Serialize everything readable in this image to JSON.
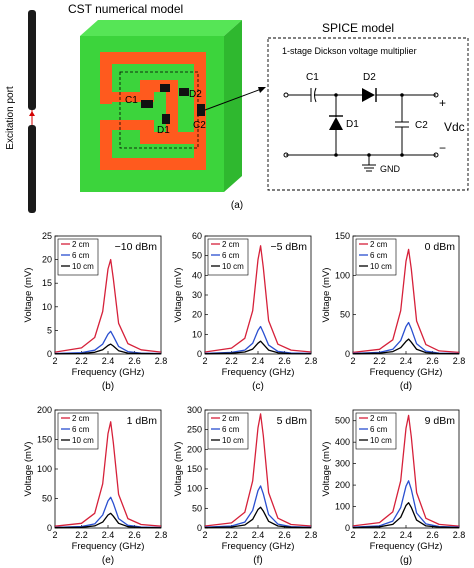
{
  "figure": {
    "cst_title": "CST numerical model",
    "excitation_label": "Excitation port",
    "spice_title": "SPICE model",
    "circuit_caption": "1-stage Dickson voltage multiplier",
    "c1_label": "C1",
    "d2_label": "D2",
    "d1_label": "D1",
    "c2_label": "C2",
    "gnd_label": "GND",
    "vdc_label": "Vdc",
    "plus_label": "+",
    "minus_label": "−",
    "model_c1": "C1",
    "model_d2": "D2",
    "model_d1": "D1",
    "model_c2": "C2",
    "panel_a": "(a)",
    "colors": {
      "antenna_green": "#3cd43c",
      "antenna_orange": "#ff5a1e",
      "series_2cm": "#d6213a",
      "series_6cm": "#2a4fd0",
      "series_10cm": "#000000"
    }
  },
  "chart_data": [
    {
      "type": "line",
      "panel": "(b)",
      "annotation": "−10 dBm",
      "xlabel": "Frequency (GHz)",
      "ylabel": "Voltage (mV)",
      "xlim": [
        2,
        2.8
      ],
      "ylim": [
        0,
        25
      ],
      "xticks": [
        "2",
        "2.2",
        "2.4",
        "2.6",
        "2.8"
      ],
      "yticks": [
        "0",
        "5",
        "10",
        "15",
        "20",
        "25"
      ],
      "x": [
        2.0,
        2.2,
        2.3,
        2.36,
        2.4,
        2.42,
        2.44,
        2.48,
        2.55,
        2.65,
        2.8
      ],
      "series": [
        {
          "name": "2 cm",
          "values": [
            0.4,
            1.3,
            3.5,
            9.0,
            18.0,
            20.0,
            16.0,
            6.5,
            2.2,
            0.9,
            0.4
          ]
        },
        {
          "name": "6 cm",
          "values": [
            0.1,
            0.3,
            0.8,
            2.1,
            4.2,
            4.8,
            3.8,
            1.6,
            0.5,
            0.2,
            0.1
          ]
        },
        {
          "name": "10 cm",
          "values": [
            0.05,
            0.1,
            0.35,
            0.9,
            1.8,
            2.1,
            1.7,
            0.7,
            0.2,
            0.1,
            0.05
          ]
        }
      ]
    },
    {
      "type": "line",
      "panel": "(c)",
      "annotation": "−5 dBm",
      "xlabel": "Frequency (GHz)",
      "ylabel": "Voltage (mV)",
      "xlim": [
        2,
        2.8
      ],
      "ylim": [
        0,
        60
      ],
      "xticks": [
        "2",
        "2.2",
        "2.4",
        "2.6",
        "2.8"
      ],
      "yticks": [
        "0",
        "10",
        "20",
        "30",
        "40",
        "50",
        "60"
      ],
      "x": [
        2.0,
        2.2,
        2.3,
        2.36,
        2.4,
        2.42,
        2.44,
        2.48,
        2.55,
        2.65,
        2.8
      ],
      "series": [
        {
          "name": "2 cm",
          "values": [
            1.0,
            3.0,
            8.0,
            22.0,
            48.0,
            55.0,
            44.0,
            17.0,
            5.0,
            2.0,
            1.0
          ]
        },
        {
          "name": "6 cm",
          "values": [
            0.3,
            0.8,
            2.0,
            5.5,
            12.0,
            14.0,
            11.0,
            4.5,
            1.3,
            0.5,
            0.3
          ]
        },
        {
          "name": "10 cm",
          "values": [
            0.1,
            0.4,
            1.0,
            2.5,
            5.5,
            6.5,
            5.0,
            2.0,
            0.6,
            0.2,
            0.1
          ]
        }
      ]
    },
    {
      "type": "line",
      "panel": "(d)",
      "annotation": "0 dBm",
      "xlabel": "Frequency (GHz)",
      "ylabel": "Voltage (mV)",
      "xlim": [
        2,
        2.8
      ],
      "ylim": [
        0,
        150
      ],
      "xticks": [
        "2",
        "2.2",
        "2.4",
        "2.6",
        "2.8"
      ],
      "yticks": [
        "0",
        "50",
        "100",
        "150"
      ],
      "x": [
        2.0,
        2.2,
        2.3,
        2.36,
        2.4,
        2.42,
        2.44,
        2.48,
        2.55,
        2.65,
        2.8
      ],
      "series": [
        {
          "name": "2 cm",
          "values": [
            2.0,
            6.0,
            18.0,
            55.0,
            118.0,
            133.0,
            108.0,
            42.0,
            12.0,
            4.0,
            2.0
          ]
        },
        {
          "name": "6 cm",
          "values": [
            0.8,
            2.0,
            6.0,
            17.0,
            35.0,
            40.0,
            32.0,
            13.0,
            3.5,
            1.2,
            0.6
          ]
        },
        {
          "name": "10 cm",
          "values": [
            0.3,
            1.0,
            3.0,
            8.0,
            16.0,
            19.0,
            15.0,
            6.0,
            1.8,
            0.6,
            0.3
          ]
        }
      ]
    },
    {
      "type": "line",
      "panel": "(e)",
      "annotation": "1 dBm",
      "xlabel": "Frequency (GHz)",
      "ylabel": "Voltage (mV)",
      "xlim": [
        2,
        2.8
      ],
      "ylim": [
        0,
        200
      ],
      "xticks": [
        "2",
        "2.2",
        "2.4",
        "2.6",
        "2.8"
      ],
      "yticks": [
        "0",
        "50",
        "100",
        "150",
        "200"
      ],
      "x": [
        2.0,
        2.2,
        2.3,
        2.36,
        2.4,
        2.42,
        2.44,
        2.48,
        2.55,
        2.65,
        2.8
      ],
      "series": [
        {
          "name": "2 cm",
          "values": [
            3.0,
            8.0,
            25.0,
            75.0,
            160.0,
            180.0,
            145.0,
            57.0,
            16.0,
            6.0,
            3.0
          ]
        },
        {
          "name": "6 cm",
          "values": [
            1.0,
            2.5,
            7.0,
            22.0,
            46.0,
            52.0,
            42.0,
            16.0,
            4.5,
            1.7,
            0.8
          ]
        },
        {
          "name": "10 cm",
          "values": [
            0.5,
            1.2,
            3.5,
            10.0,
            22.0,
            25.0,
            20.0,
            8.0,
            2.2,
            0.8,
            0.4
          ]
        }
      ]
    },
    {
      "type": "line",
      "panel": "(f)",
      "annotation": "5 dBm",
      "xlabel": "Frequency (GHz)",
      "ylabel": "Voltage (mV)",
      "xlim": [
        2,
        2.8
      ],
      "ylim": [
        0,
        300
      ],
      "xticks": [
        "2",
        "2.2",
        "2.4",
        "2.6",
        "2.8"
      ],
      "yticks": [
        "0",
        "50",
        "100",
        "150",
        "200",
        "250",
        "300"
      ],
      "x": [
        2.0,
        2.2,
        2.3,
        2.36,
        2.4,
        2.42,
        2.44,
        2.48,
        2.55,
        2.65,
        2.8
      ],
      "series": [
        {
          "name": "2 cm",
          "values": [
            5.0,
            13.0,
            40.0,
            120.0,
            255.0,
            290.0,
            235.0,
            90.0,
            25.0,
            9.0,
            5.0
          ]
        },
        {
          "name": "6 cm",
          "values": [
            2.0,
            5.0,
            15.0,
            45.0,
            95.0,
            107.0,
            87.0,
            34.0,
            10.0,
            3.5,
            1.8
          ]
        },
        {
          "name": "10 cm",
          "values": [
            1.0,
            2.5,
            7.5,
            22.0,
            47.0,
            53.0,
            43.0,
            17.0,
            5.0,
            1.8,
            0.9
          ]
        }
      ]
    },
    {
      "type": "line",
      "panel": "(g)",
      "annotation": "9 dBm",
      "xlabel": "Frequency (GHz)",
      "ylabel": "Voltage (mV)",
      "xlim": [
        2,
        2.8
      ],
      "ylim": [
        0,
        550
      ],
      "xticks": [
        "2",
        "2.2",
        "2.4",
        "2.6",
        "2.8"
      ],
      "yticks": [
        "0",
        "100",
        "200",
        "300",
        "400",
        "500"
      ],
      "x": [
        2.0,
        2.2,
        2.3,
        2.36,
        2.4,
        2.42,
        2.44,
        2.48,
        2.55,
        2.65,
        2.8
      ],
      "series": [
        {
          "name": "2 cm",
          "values": [
            10.0,
            25.0,
            75.0,
            220.0,
            465.0,
            525.0,
            425.0,
            165.0,
            45.0,
            17.0,
            9.0
          ]
        },
        {
          "name": "6 cm",
          "values": [
            4.0,
            10.0,
            32.0,
            95.0,
            195.0,
            220.0,
            180.0,
            70.0,
            19.0,
            7.0,
            4.0
          ]
        },
        {
          "name": "10 cm",
          "values": [
            2.0,
            5.5,
            17.0,
            50.0,
            105.0,
            118.0,
            96.0,
            37.0,
            10.0,
            4.0,
            2.0
          ]
        }
      ]
    }
  ]
}
